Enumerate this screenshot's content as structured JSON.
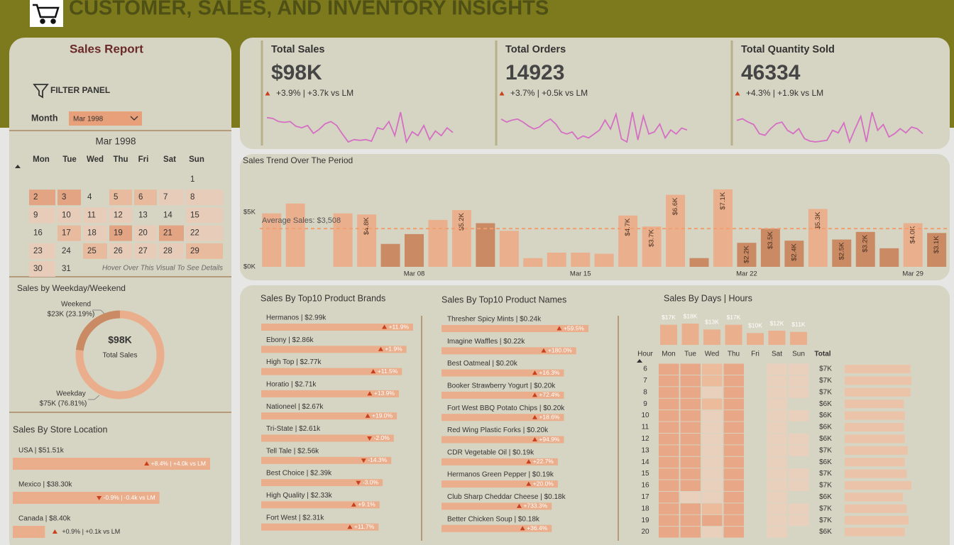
{
  "header": {
    "title": "CUSTOMER, SALES, AND INVENTORY INSIGHTS"
  },
  "filter": {
    "title": "Sales Report",
    "panel_label": "FILTER PANEL",
    "month_label": "Month",
    "month_value": "Mar 1998"
  },
  "calendar": {
    "title": "Mar 1998",
    "weekdays": [
      "Mon",
      "Tue",
      "Wed",
      "Thu",
      "Fri",
      "Sat",
      "Sun"
    ],
    "days": [
      1,
      2,
      3,
      4,
      5,
      6,
      7,
      8,
      9,
      10,
      11,
      12,
      13,
      14,
      15,
      16,
      17,
      18,
      19,
      20,
      21,
      22,
      23,
      24,
      25,
      26,
      27,
      28,
      29,
      30,
      31
    ],
    "colors": [
      null,
      "#e2a482",
      "#e2a482",
      null,
      "#e9bb9e",
      "#e9bb9e",
      "#e7cdb9",
      "#e7cdb9",
      "#e7cdb9",
      "#e7cdb9",
      "#e7cdb9",
      "#e7cdb9",
      null,
      null,
      "#e7cdb9",
      null,
      "#e9bb9e",
      "#e7cdb9",
      "#e2a482",
      "#e7cdb9",
      "#e2a482",
      "#e7cdb9",
      "#e7cdb9",
      null,
      "#e9bb9e",
      "#e7cdb9",
      "#e7cdb9",
      "#e7cdb9",
      "#e9bb9e",
      "#e7cdb9",
      null
    ],
    "hint": "Hover Over This Visual To See Details"
  },
  "kpis": [
    {
      "title": "Total Sales",
      "value": "$98K",
      "change": "+3.9% | +3.7k vs LM",
      "up": true,
      "trend": {
        "color": "#d46fc4",
        "values": [
          33,
          32,
          28,
          27,
          28,
          22,
          20,
          23,
          13,
          18,
          25,
          28,
          23,
          12,
          2,
          5,
          4,
          5,
          3,
          20,
          18,
          28,
          10,
          40,
          2,
          15,
          10,
          23,
          5,
          16,
          10,
          20,
          14
        ]
      }
    },
    {
      "title": "Total Orders",
      "value": 14923,
      "change": "+3.7% | +0.5k vs LM",
      "up": true,
      "trend": {
        "color": "#d46fc4",
        "values": [
          25,
          22,
          24,
          25,
          22,
          18,
          15,
          17,
          22,
          25,
          20,
          12,
          10,
          12,
          5,
          8,
          6,
          10,
          14,
          24,
          15,
          30,
          5,
          2,
          32,
          4,
          28,
          10,
          12,
          20,
          6,
          14,
          10,
          16,
          14
        ]
      }
    },
    {
      "title": "Total Quantity Sold",
      "value": 46334,
      "change": "+4.3% | +1.9k vs LM",
      "up": true,
      "trend": {
        "color": "#d46fc4",
        "values": [
          30,
          32,
          28,
          25,
          14,
          12,
          20,
          26,
          28,
          18,
          14,
          20,
          8,
          5,
          4,
          5,
          6,
          18,
          15,
          27,
          4,
          20,
          35,
          4,
          40,
          18,
          25,
          10,
          14,
          20,
          15,
          22,
          20,
          14
        ]
      }
    }
  ],
  "chart_data": [
    {
      "type": "bar",
      "title": "Sales Trend Over The Period",
      "categories": [
        null,
        null,
        null,
        null,
        null,
        null,
        "Mar 08",
        null,
        null,
        null,
        null,
        null,
        null,
        "Mar 15",
        null,
        null,
        null,
        null,
        null,
        null,
        "Mar 22",
        null,
        null,
        null,
        null,
        null,
        null,
        "Mar 29",
        null
      ],
      "values": [
        4900,
        5800,
        null,
        4900,
        4800,
        2100,
        3000,
        4300,
        5200,
        4000,
        3300,
        800,
        1300,
        1300,
        1200,
        4700,
        3700,
        6600,
        800,
        7100,
        2200,
        3500,
        2400,
        5300,
        2500,
        3200,
        1700,
        4000,
        3100
      ],
      "value_labels": [
        null,
        null,
        null,
        null,
        "$4.8K",
        null,
        null,
        null,
        "$5.2K",
        null,
        null,
        null,
        null,
        null,
        null,
        "$4.7K",
        "$3.7K",
        "$6.6K",
        null,
        "$7.1K",
        "$2.2K",
        "$3.5K",
        "$2.4K",
        "$5.3K",
        "$2.5K",
        "$3.2K",
        null,
        "$4.0K",
        "$3.1K"
      ],
      "colors": [
        "#eab08e",
        "#eab08e",
        "#eab08e",
        "#eab08e",
        "#eab08e",
        "#c98a64",
        "#c98a64",
        "#eab08e",
        "#eab08e",
        "#c98a64",
        "#eab08e",
        "#eab08e",
        "#eab08e",
        "#eab08e",
        "#eab08e",
        "#eab08e",
        "#eab08e",
        "#eab08e",
        "#c98a64",
        "#eab08e",
        "#c98a64",
        "#c98a64",
        "#c98a64",
        "#eab08e",
        "#c98a64",
        "#c98a64",
        "#c98a64",
        "#eab08e",
        "#c98a64"
      ],
      "ylim": [
        0,
        8000
      ],
      "yticks": [
        {
          "value": 0,
          "label": "$0K"
        },
        {
          "value": 5000,
          "label": "$5K"
        }
      ],
      "average": {
        "value": 3508,
        "label": "Average Sales: $3,508",
        "color": "#f0a070"
      }
    },
    {
      "type": "pie",
      "donut": true,
      "title": "Sales by Weekday/Weekend",
      "categories": [
        "Weekday",
        "Weekend"
      ],
      "values": [
        76.81,
        23.19
      ],
      "value_labels": [
        "$75K (76.81%)",
        "$23K (23.19%)"
      ],
      "colors": [
        "#eaae8c",
        "#c98a64"
      ],
      "center_value": "$98K",
      "center_label": "Total Sales"
    },
    {
      "type": "hbar",
      "title": "Sales By Store Location",
      "color": "#eaae8c",
      "value_labels": [
        "USA | $51.51k",
        "Mexico | $38.30k",
        "Canada | $8.40k"
      ],
      "values": [
        51.51,
        38.3,
        8.4
      ],
      "changes": [
        "+8.4% | +4.0k vs LM",
        "-0.9% | -0.4k vs LM",
        "+0.9% | +0.1k vs LM"
      ],
      "change_up": [
        true,
        false,
        true
      ]
    },
    {
      "type": "hbar",
      "title": "Sales By Top10 Product Brands",
      "color": "#eaae8c",
      "value_labels": [
        "Hermanos | $2.99k",
        "Ebony | $2.86k",
        "High Top | $2.77k",
        "Horatio | $2.71k",
        "Nationeel | $2.67k",
        "Tri-State | $2.61k",
        "Tell Tale | $2.56k",
        "Best Choice | $2.39k",
        "High Quality | $2.33k",
        "Fort West | $2.31k"
      ],
      "values": [
        2.99,
        2.86,
        2.77,
        2.71,
        2.67,
        2.61,
        2.56,
        2.39,
        2.33,
        2.31
      ],
      "changes": [
        "+11.9%",
        "+1.9%",
        "+11.5%",
        "+13.9%",
        "+19.0%",
        "-2.0%",
        "-14.3%",
        "-3.0%",
        "+9.1%",
        "+11.7%"
      ],
      "change_up": [
        true,
        true,
        true,
        true,
        true,
        false,
        false,
        false,
        true,
        true
      ]
    },
    {
      "type": "hbar",
      "title": "Sales By Top10 Product Names",
      "color": "#eaae8c",
      "value_labels": [
        "Thresher Spicy Mints | $0.24k",
        "Imagine Waffles | $0.22k",
        "Best Oatmeal | $0.20k",
        "Booker Strawberry Yogurt | $0.20k",
        "Fort West BBQ Potato Chips | $0.20k",
        "Red Wing Plastic Forks | $0.20k",
        "CDR Vegetable Oil | $0.19k",
        "Hermanos Green Pepper | $0.19k",
        "Club Sharp Cheddar Cheese | $0.18k",
        "Better Chicken Soup | $0.18k"
      ],
      "values": [
        0.24,
        0.22,
        0.2,
        0.2,
        0.2,
        0.2,
        0.19,
        0.19,
        0.18,
        0.18
      ],
      "changes": [
        "+59.5%",
        "+180.0%",
        "+16.3%",
        "+72.4%",
        "+18.6%",
        "+94.9%",
        "+22.7%",
        "+20.0%",
        "+733.3%",
        "+36.4%"
      ],
      "change_up": [
        true,
        true,
        true,
        true,
        true,
        true,
        true,
        true,
        true,
        true
      ]
    },
    {
      "type": "bar",
      "title": "Sales By Days | Hours",
      "color": "#eab08e",
      "categories": [
        "Mon",
        "Tue",
        "Wed",
        "Thu",
        "Fri",
        "Sat",
        "Sun"
      ],
      "values": [
        17,
        18,
        13,
        17,
        10,
        12,
        11
      ],
      "value_labels": [
        "$17K",
        "$18K",
        "$13K",
        "$17K",
        "$10K",
        "$12K",
        "$11K"
      ]
    },
    {
      "type": "hbar",
      "color": "#ebc3a8",
      "values": [
        7.0,
        7.1,
        7.0,
        6.3,
        6.4,
        6.3,
        6.4,
        6.7,
        6.4,
        6.6,
        7.1,
        6.2,
        6.6,
        6.8,
        6.4
      ],
      "value_labels": [
        "$7K",
        "$7K",
        "$7K",
        "$6K",
        "$6K",
        "$6K",
        "$6K",
        "$7K",
        "$6K",
        "$7K",
        "$7K",
        "$6K",
        "$7K",
        "$7K",
        "$6K"
      ]
    }
  ],
  "heatmap": {
    "row_header": "Hour",
    "total_header": "Total",
    "hours": [
      6,
      7,
      8,
      9,
      10,
      11,
      12,
      13,
      14,
      15,
      16,
      17,
      18,
      19,
      20
    ],
    "palette": {
      "d": "#e8a887",
      "m": "#ecbb9c",
      "l": "#e9d0bc"
    },
    "cells": [
      "ddmd0ll",
      "ddmd0ll",
      "ddld0ll",
      "ddmd0l0",
      "ddld0ll",
      "ddld0l0",
      "ddld0ll",
      "ddld0ll",
      "ddld0l0",
      "ddld0ll",
      "ddld0ll",
      "dlld0l0",
      "ddmd0ll",
      "dddd0ll",
      "ddld0l0"
    ]
  }
}
